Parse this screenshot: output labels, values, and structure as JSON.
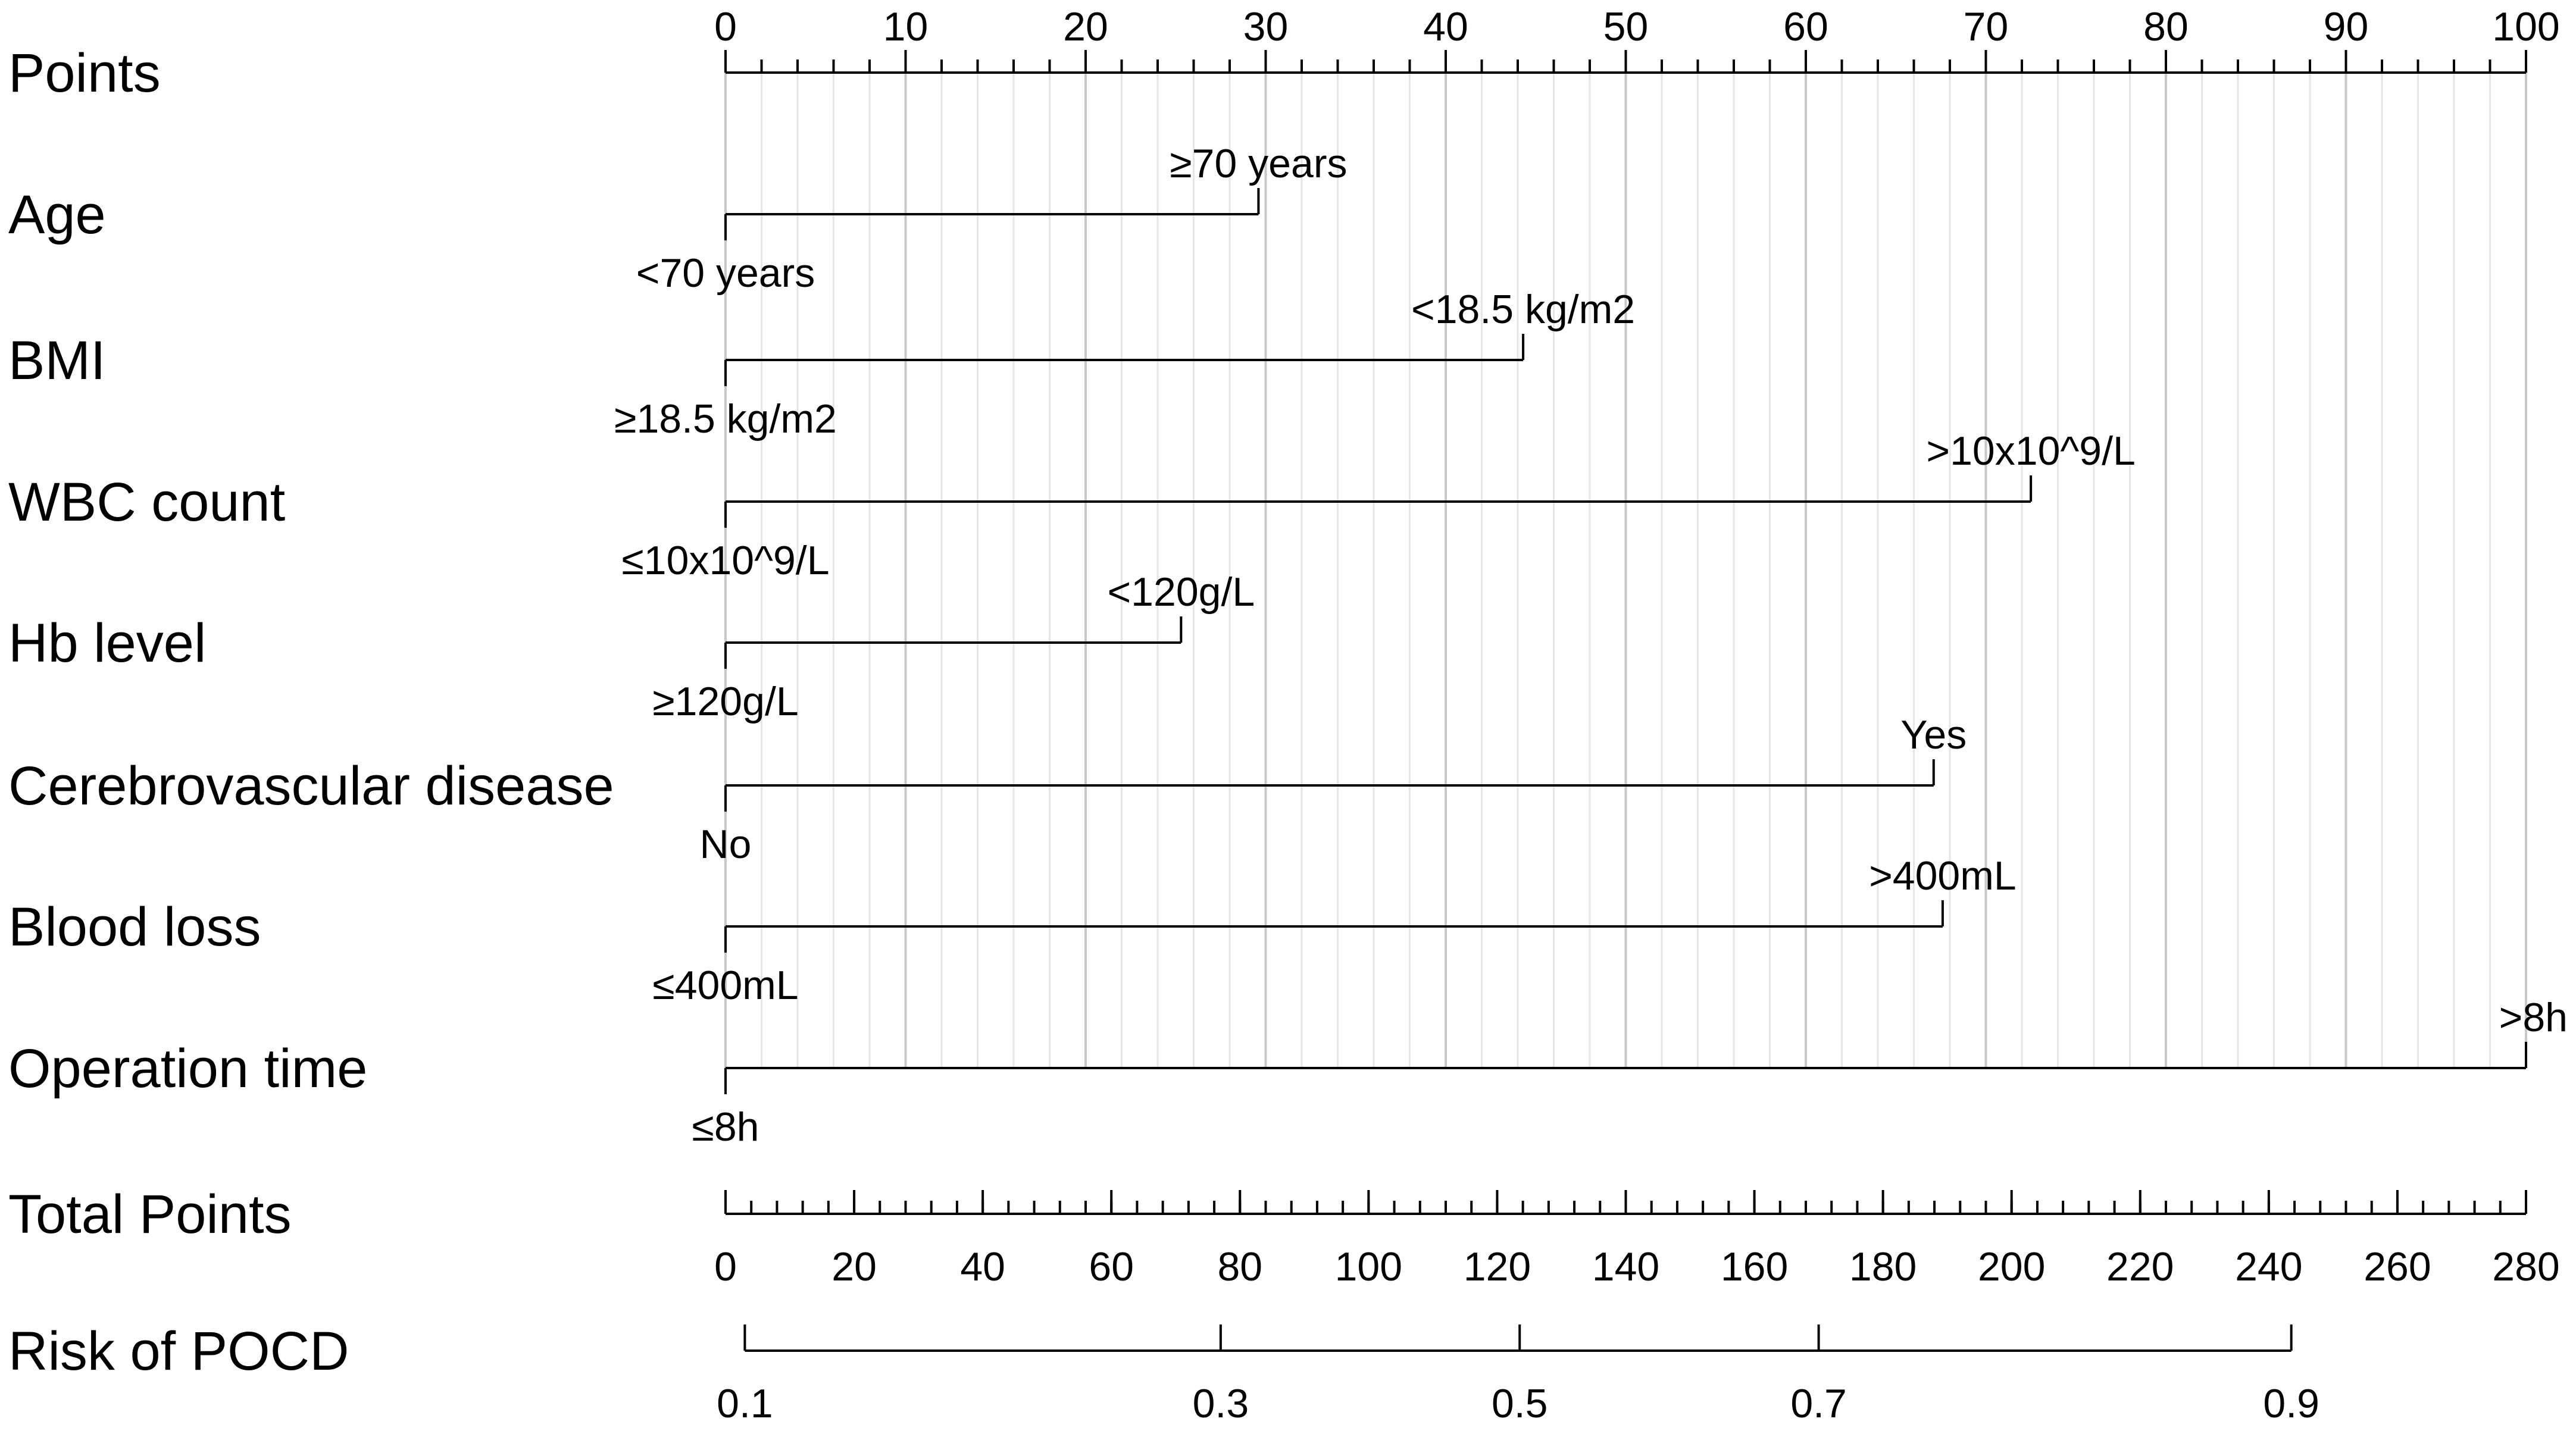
{
  "chart_data": {
    "type": "nomogram",
    "title": "",
    "points_axis": {
      "label": "Points",
      "range": [
        0,
        100
      ],
      "major_ticks": [
        0,
        10,
        20,
        30,
        40,
        50,
        60,
        70,
        80,
        90,
        100
      ],
      "minor_step": 2,
      "grid": true
    },
    "predictors": [
      {
        "name": "Age",
        "levels": [
          {
            "label": "<70 years",
            "points": 0,
            "position": "below"
          },
          {
            "label": "≥70 years",
            "points": 29.6,
            "position": "above"
          }
        ]
      },
      {
        "name": "BMI",
        "levels": [
          {
            "label": "≥18.5 kg/m2",
            "points": 0,
            "position": "below"
          },
          {
            "label": "<18.5 kg/m2",
            "points": 44.3,
            "position": "above"
          }
        ]
      },
      {
        "name": "WBC count",
        "levels": [
          {
            "label": "≤10x10^9/L",
            "points": 0,
            "position": "below"
          },
          {
            "label": ">10x10^9/L",
            "points": 72.5,
            "position": "above"
          }
        ]
      },
      {
        "name": "Hb level",
        "levels": [
          {
            "label": "≥120g/L",
            "points": 0,
            "position": "below"
          },
          {
            "label": "<120g/L",
            "points": 25.3,
            "position": "above"
          }
        ]
      },
      {
        "name": "Cerebrovascular disease",
        "levels": [
          {
            "label": "No",
            "points": 0,
            "position": "below"
          },
          {
            "label": "Yes",
            "points": 67.1,
            "position": "above"
          }
        ]
      },
      {
        "name": "Blood loss",
        "levels": [
          {
            "label": "≤400mL",
            "points": 0,
            "position": "below"
          },
          {
            "label": ">400mL",
            "points": 67.6,
            "position": "above"
          }
        ]
      },
      {
        "name": "Operation time",
        "levels": [
          {
            "label": "≤8h",
            "points": 0,
            "position": "below"
          },
          {
            "label": ">8h",
            "points": 100,
            "position": "above"
          }
        ]
      }
    ],
    "total_points_axis": {
      "label": "Total Points",
      "range": [
        0,
        280
      ],
      "major_ticks": [
        0,
        20,
        40,
        60,
        80,
        100,
        120,
        140,
        160,
        180,
        200,
        220,
        240,
        260,
        280
      ],
      "minor_step": 4
    },
    "risk_axis": {
      "label": "Risk of POCD",
      "ticks": [
        {
          "label": "0.1",
          "total_points": 3
        },
        {
          "label": "0.3",
          "total_points": 77
        },
        {
          "label": "0.5",
          "total_points": 123.5
        },
        {
          "label": "0.7",
          "total_points": 170
        },
        {
          "label": "0.9",
          "total_points": 243.5
        }
      ]
    }
  }
}
